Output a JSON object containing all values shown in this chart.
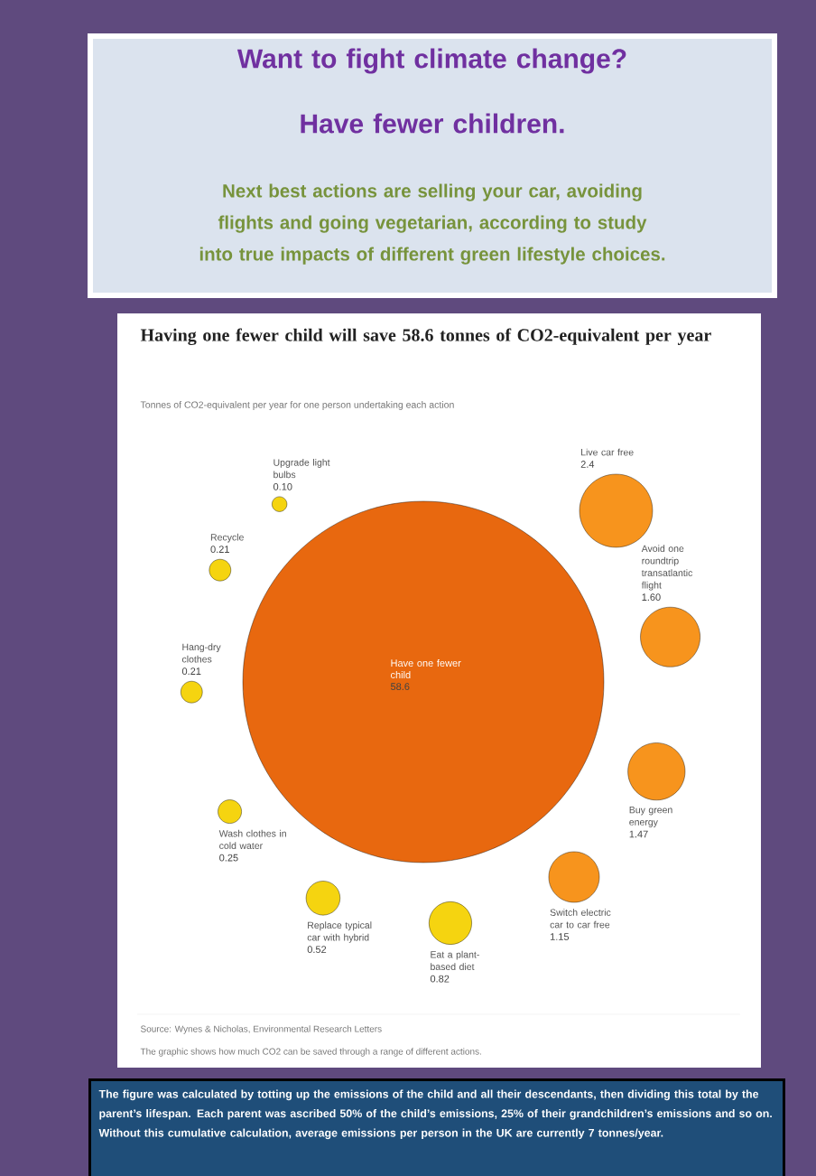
{
  "chart_data": {
    "type": "other",
    "title": "Having one fewer child will save 58.6 tonnes of CO2-equivalent per year",
    "subtitle": "Tonnes of CO2-equivalent per year for one person undertaking each action",
    "categories": [
      "Have one fewer child",
      "Upgrade light bulbs",
      "Live car free",
      "Avoid one roundtrip transatlantic flight",
      "Buy green energy",
      "Switch electric car to car free",
      "Eat a plant-based diet",
      "Replace typical car with hybrid",
      "Wash clothes in cold water",
      "Hang-dry clothes",
      "Recycle"
    ],
    "values": [
      58.6,
      0.1,
      2.4,
      1.6,
      1.47,
      1.15,
      0.82,
      0.52,
      0.25,
      0.21,
      0.21
    ],
    "value_labels": [
      "58.6",
      "0.10",
      "2.4",
      "1.60",
      "1.47",
      "1.15",
      "0.82",
      "0.52",
      "0.25",
      "0.21",
      "0.21"
    ],
    "colors": [
      "#e8680f",
      "#f5d410",
      "#f7941d",
      "#f7941d",
      "#f7941d",
      "#f7941d",
      "#f5d410",
      "#f5d410",
      "#f5d410",
      "#f5d410",
      "#f5d410"
    ],
    "annotations": [
      "Want to fight climate change?",
      "Have fewer children.",
      "Next best actions are selling your car, avoiding flights and going vegetarian, according to study into true impacts of different green lifestyle choices.",
      "Source: Wynes & Nicholas, Environmental Research Letters",
      "The graphic shows how much CO2 can be saved through a range of different actions.",
      "The figure was calculated by totting up the emissions of the child and all their descendants, then dividing this total by the parent’s lifespan. Each parent was ascribed 50% of the child’s emissions, 25% of their grandchildren’s emissions and so on. Without this cumulative calculation, average emissions per person in the UK are currently 7 tonnes/year."
    ]
  }
}
